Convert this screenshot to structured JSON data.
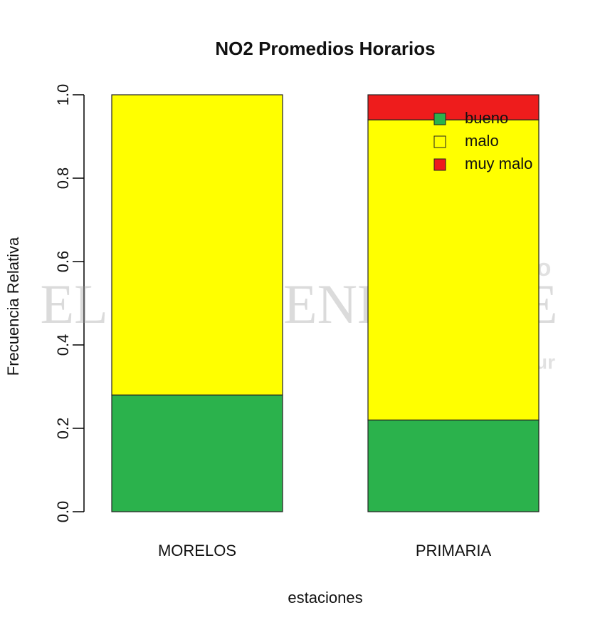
{
  "chart_data": {
    "type": "stacked_bar",
    "title": "NO2 Promedios Horarios",
    "xlabel": "estaciones",
    "ylabel": "Frecuencia Relativa",
    "categories": [
      "MORELOS",
      "PRIMARIA"
    ],
    "series": [
      {
        "name": "bueno",
        "color": "#2bb24c",
        "values": [
          0.28,
          0.22
        ]
      },
      {
        "name": "malo",
        "color": "#ffff00",
        "values": [
          0.72,
          0.72
        ]
      },
      {
        "name": "muy malo",
        "color": "#ee1c1c",
        "values": [
          0,
          0.06
        ]
      }
    ],
    "ylim": [
      0,
      1
    ],
    "yticks": [
      {
        "value": 0,
        "label": "0.0"
      },
      0.2,
      0.4,
      0.6,
      0.8,
      {
        "value": 1,
        "label": "1.0"
      }
    ],
    "legend": "top-right",
    "watermark": [
      "Diario",
      "EL INDEPENDIENTE",
      "Baja California Sur"
    ]
  }
}
